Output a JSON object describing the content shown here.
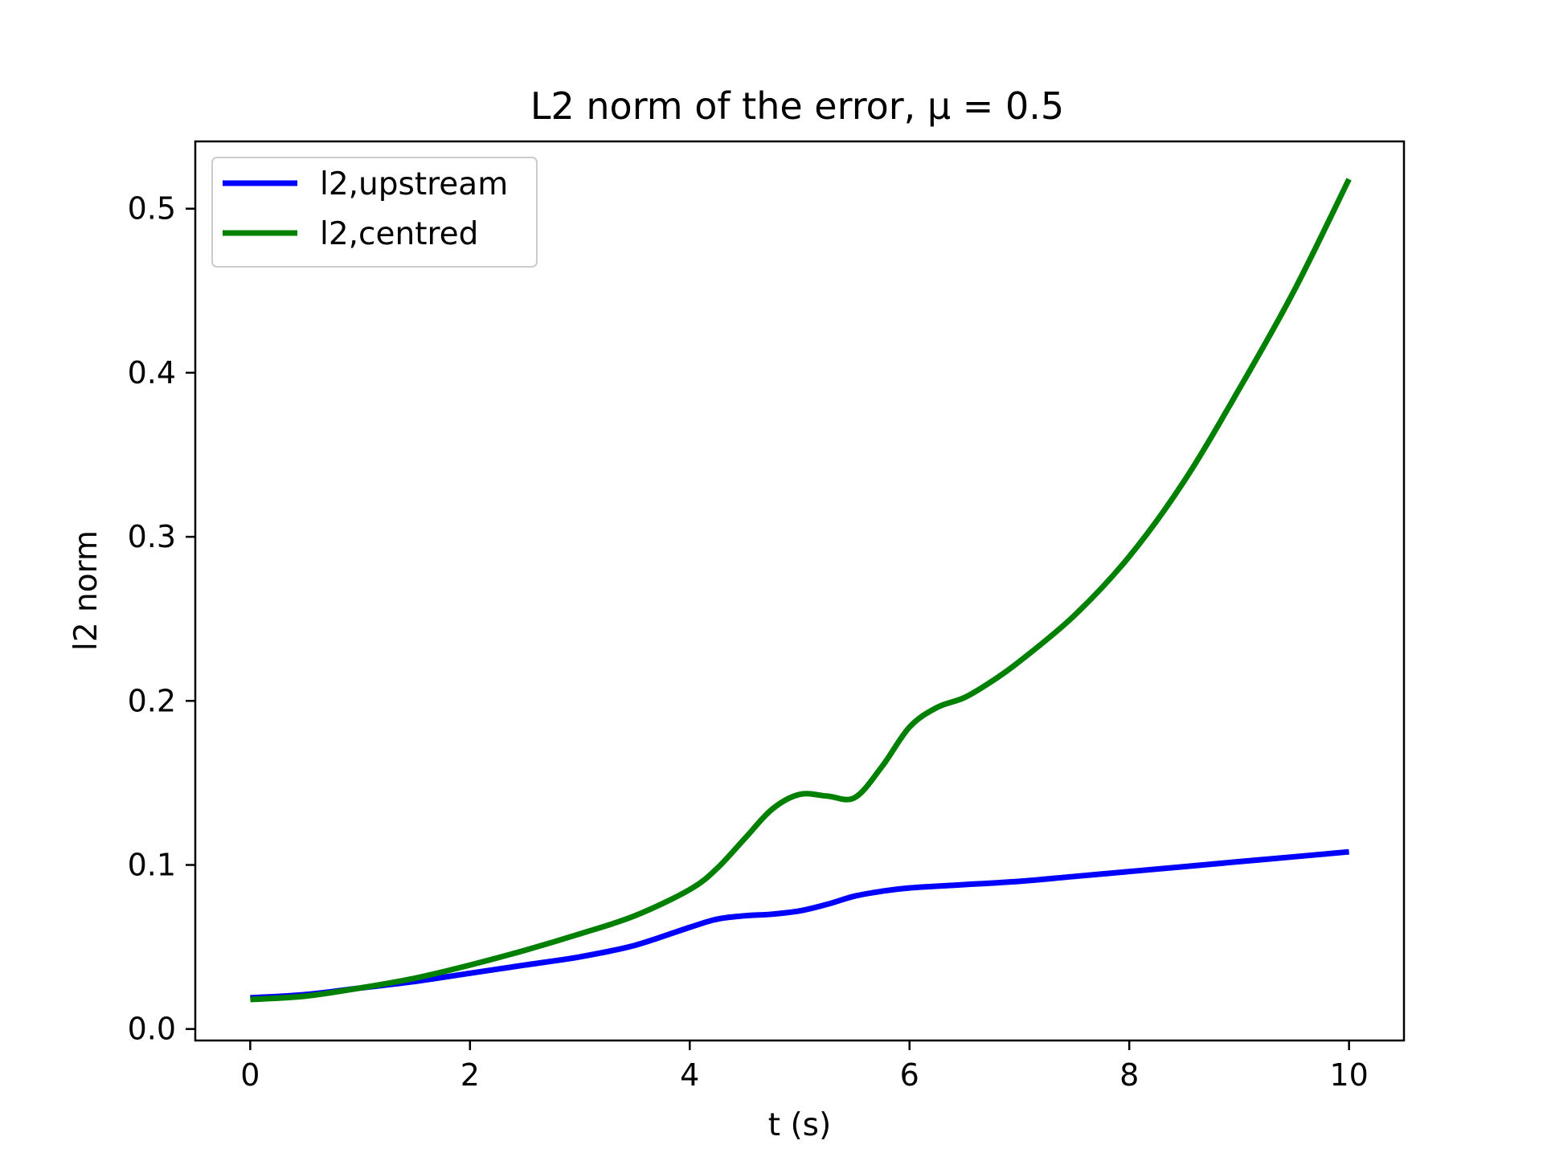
{
  "chart_data": {
    "type": "line",
    "title": "L2 norm of the error, μ = 0.5",
    "xlabel": "t (s)",
    "ylabel": "l2 norm",
    "xlim": [
      -0.5,
      10.5
    ],
    "ylim": [
      -0.007,
      0.541
    ],
    "xticks": [
      0,
      2,
      4,
      6,
      8,
      10
    ],
    "yticks": [
      0.0,
      0.1,
      0.2,
      0.3,
      0.4,
      0.5
    ],
    "xtick_labels": [
      "0",
      "2",
      "4",
      "6",
      "8",
      "10"
    ],
    "ytick_labels": [
      "0.0",
      "0.1",
      "0.2",
      "0.3",
      "0.4",
      "0.5"
    ],
    "grid": false,
    "legend_position": "top-left",
    "series": [
      {
        "name": "l2,upstream",
        "color": "#0000ff",
        "x": [
          0,
          0.5,
          1,
          1.5,
          2,
          2.5,
          3,
          3.5,
          4,
          4.25,
          4.5,
          4.75,
          5,
          5.25,
          5.5,
          5.75,
          6,
          6.5,
          7,
          7.5,
          8,
          8.5,
          9,
          9.5,
          10
        ],
        "y": [
          0.019,
          0.021,
          0.025,
          0.029,
          0.034,
          0.039,
          0.044,
          0.051,
          0.062,
          0.067,
          0.069,
          0.07,
          0.072,
          0.076,
          0.081,
          0.084,
          0.086,
          0.088,
          0.09,
          0.093,
          0.096,
          0.099,
          0.102,
          0.105,
          0.108
        ]
      },
      {
        "name": "l2,centred",
        "color": "#008000",
        "x": [
          0,
          0.5,
          1,
          1.5,
          2,
          2.5,
          3,
          3.5,
          4,
          4.25,
          4.5,
          4.75,
          5,
          5.25,
          5.5,
          5.75,
          6,
          6.25,
          6.5,
          6.75,
          7,
          7.5,
          8,
          8.5,
          9,
          9.5,
          10
        ],
        "y": [
          0.018,
          0.02,
          0.025,
          0.031,
          0.039,
          0.048,
          0.058,
          0.069,
          0.085,
          0.098,
          0.116,
          0.134,
          0.143,
          0.142,
          0.141,
          0.16,
          0.184,
          0.196,
          0.202,
          0.212,
          0.224,
          0.252,
          0.288,
          0.334,
          0.39,
          0.45,
          0.518
        ]
      }
    ]
  }
}
